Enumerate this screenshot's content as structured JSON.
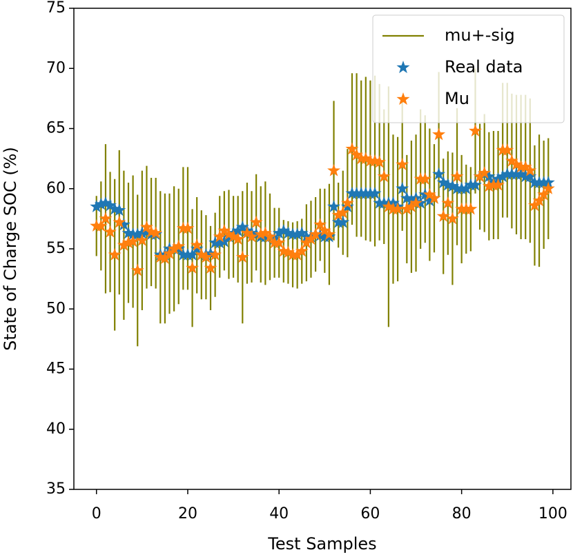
{
  "chart_data": {
    "type": "errorbar",
    "x_label": "Test Samples",
    "y_label": "State of Charge SOC (%)",
    "x": [
      0,
      1,
      2,
      3,
      4,
      5,
      6,
      7,
      8,
      9,
      10,
      11,
      12,
      13,
      14,
      15,
      16,
      17,
      18,
      19,
      20,
      21,
      22,
      23,
      24,
      25,
      26,
      27,
      28,
      29,
      30,
      31,
      32,
      33,
      34,
      35,
      36,
      37,
      38,
      39,
      40,
      41,
      42,
      43,
      44,
      45,
      46,
      47,
      48,
      49,
      50,
      51,
      52,
      53,
      54,
      55,
      56,
      57,
      58,
      59,
      60,
      61,
      62,
      63,
      64,
      65,
      66,
      67,
      68,
      69,
      70,
      71,
      72,
      73,
      74,
      75,
      76,
      77,
      78,
      79,
      80,
      81,
      82,
      83,
      84,
      85,
      86,
      87,
      88,
      89,
      90,
      91,
      92,
      93,
      94,
      95,
      96,
      97,
      98,
      99
    ],
    "series": [
      {
        "name": "mu+-sig",
        "color": "#808000",
        "values": [
          2.5,
          3.7,
          6.2,
          5,
          6.3,
          6,
          6.2,
          5,
          5.5,
          6.3,
          5.8,
          5.1,
          4.5,
          4.6,
          5.5,
          5.4,
          5,
          5.2,
          4.8,
          5.1,
          5.1,
          4.9,
          4,
          3.7,
          3.5,
          3.5,
          3.5,
          3.4,
          3.3,
          3.7,
          3.4,
          3.6,
          5.5,
          4.2,
          3.8,
          4,
          4,
          4.3,
          3.6,
          2.9,
          2.9,
          2.6,
          2.6,
          2.7,
          2.8,
          2.7,
          3.2,
          3.2,
          3.1,
          3,
          3.5,
          4.2,
          5.8,
          2.7,
          3.5,
          4.5,
          6.3,
          6.8,
          6.5,
          6.8,
          6.7,
          7.1,
          6.5,
          5.6,
          10,
          6.2,
          6,
          5.5,
          4.5,
          5.5,
          5.7,
          5.8,
          5.3,
          5.5,
          4.5,
          5.2,
          4.8,
          4.3,
          5.5,
          5.7,
          4.5,
          3.7,
          3.5,
          5.2,
          4.4,
          4.9,
          4.5,
          4.5,
          4.5,
          5.6,
          5.6,
          5.6,
          5.8,
          6,
          6,
          6,
          5,
          5.5,
          4.5,
          4.2
        ]
      },
      {
        "name": "Real data",
        "color": "#1f77b4",
        "values": [
          58.5,
          58.7,
          58.8,
          58.6,
          58.3,
          58.2,
          57,
          56.3,
          56.2,
          56.2,
          56.3,
          56.4,
          56.2,
          56.2,
          54.5,
          54.5,
          55,
          55,
          55,
          54.5,
          54.5,
          54.5,
          55,
          54.5,
          54.5,
          54.6,
          55.5,
          55.5,
          55.6,
          56,
          56.3,
          56.5,
          56.8,
          56.5,
          56.3,
          56.2,
          56,
          56,
          56,
          55.8,
          56.3,
          56.5,
          56.3,
          56.2,
          56.2,
          56.3,
          56,
          56,
          56.2,
          56.1,
          56,
          56,
          58.5,
          57.2,
          57.2,
          58.5,
          59.6,
          59.6,
          59.6,
          59.6,
          59.6,
          59.6,
          58.8,
          58.8,
          58.8,
          58.8,
          58.5,
          60,
          59.2,
          59,
          59.2,
          58.8,
          59.5,
          59,
          59.2,
          61.2,
          60.5,
          60.3,
          60.2,
          60,
          60,
          60,
          60.3,
          60.3,
          61,
          61.2,
          61,
          60.5,
          60.8,
          61,
          61.2,
          61.2,
          61.2,
          61.2,
          61,
          61,
          60.5,
          60.5,
          60.5,
          60.5
        ]
      },
      {
        "name": "Mu",
        "color": "#ff7f0e",
        "values": [
          56.9,
          56.9,
          57.5,
          56.4,
          54.5,
          57.2,
          55.3,
          55.5,
          55.6,
          53.2,
          55.7,
          56.8,
          56.4,
          56.3,
          54.3,
          54.2,
          54.6,
          55,
          55.2,
          56.7,
          56.7,
          53.4,
          55.3,
          54.5,
          54.3,
          53.4,
          54.5,
          56,
          56.5,
          56.2,
          56,
          55.8,
          54.3,
          56.3,
          56,
          57.2,
          56.2,
          56.3,
          56,
          55.5,
          55.5,
          54.8,
          54.7,
          54.5,
          54.5,
          54.8,
          55.5,
          55.8,
          56.2,
          57,
          56.5,
          56.2,
          61.5,
          57.8,
          58,
          58.8,
          63.3,
          62.8,
          62.5,
          62.5,
          62.3,
          62.3,
          62.2,
          61,
          58.5,
          58.3,
          58.3,
          62,
          58.3,
          58.5,
          58.8,
          60.8,
          60.8,
          59.5,
          59.2,
          64.5,
          57.7,
          58.8,
          57.5,
          61,
          58.3,
          58.3,
          58.3,
          64.8,
          61,
          61.3,
          60.2,
          60.3,
          60.3,
          63.2,
          63.2,
          62.3,
          62,
          61.8,
          61.8,
          61.5,
          58.6,
          59,
          59.5,
          60
        ]
      }
    ],
    "xlim": [
      -4.95,
      103.95
    ],
    "xticks": [
      0,
      20,
      40,
      60,
      80,
      100
    ],
    "ylim": [
      35,
      75
    ],
    "yticks": [
      35,
      40,
      45,
      50,
      55,
      60,
      65,
      70,
      75
    ],
    "legend": "upper right"
  }
}
